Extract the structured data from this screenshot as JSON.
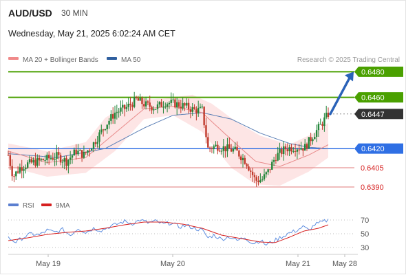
{
  "header": {
    "symbol": "AUD/USD",
    "timeframe": "30 MIN",
    "datetime": "Wednesday, May 21, 2025 6:02:24 AM CET"
  },
  "legend": {
    "ma20_label": "MA 20 + Bollinger Bands",
    "ma50_label": "MA 50",
    "credit": "Research © 2025 Trading Central"
  },
  "rsi_legend": {
    "rsi_label": "RSI",
    "ma_label": "9MA"
  },
  "colors": {
    "up": "#22863a",
    "down": "#c0392b",
    "resistance": "#4aa000",
    "pivot": "#2f6fe4",
    "support": "#e07a7a",
    "support_text": "#d62020",
    "last": "#333333",
    "arrow": "#2a62b8",
    "ma20": "#e88a8a",
    "ma50": "#5b7fb5",
    "band_fill": "#fbd0d0",
    "rsi": "#5f8fe0",
    "rsi_ma": "#d62020"
  },
  "chart_data": [
    {
      "type": "candlestick",
      "title": "AUD/USD 30 MIN",
      "x_ticks": [
        "May 19",
        "May 20",
        "May 21",
        "May 28"
      ],
      "ylim": [
        0.6383,
        0.6485
      ],
      "levels": [
        {
          "value": 0.648,
          "label": "0.6480",
          "kind": "resistance"
        },
        {
          "value": 0.646,
          "label": "0.6460",
          "kind": "resistance"
        },
        {
          "value": 0.6447,
          "label": "0.6447",
          "kind": "last"
        },
        {
          "value": 0.642,
          "label": "0.6420",
          "kind": "pivot"
        },
        {
          "value": 0.6405,
          "label": "0.6405",
          "kind": "support"
        },
        {
          "value": 0.639,
          "label": "0.6390",
          "kind": "support"
        }
      ],
      "close_path": [
        [
          0,
          0.6415
        ],
        [
          5,
          0.6398
        ],
        [
          12,
          0.6405
        ],
        [
          20,
          0.6408
        ],
        [
          30,
          0.641
        ],
        [
          40,
          0.6412
        ],
        [
          50,
          0.6414
        ],
        [
          60,
          0.641
        ],
        [
          70,
          0.6418
        ],
        [
          78,
          0.6415
        ],
        [
          88,
          0.6424
        ],
        [
          100,
          0.6438
        ],
        [
          110,
          0.6448
        ],
        [
          122,
          0.6452
        ],
        [
          132,
          0.6458
        ],
        [
          142,
          0.6454
        ],
        [
          152,
          0.6452
        ],
        [
          162,
          0.6456
        ],
        [
          172,
          0.6455
        ],
        [
          182,
          0.6453
        ],
        [
          192,
          0.645
        ],
        [
          200,
          0.645
        ],
        [
          206,
          0.642
        ],
        [
          215,
          0.6422
        ],
        [
          225,
          0.642
        ],
        [
          235,
          0.6418
        ],
        [
          245,
          0.641
        ],
        [
          255,
          0.6395
        ],
        [
          262,
          0.6396
        ],
        [
          268,
          0.6402
        ],
        [
          276,
          0.6414
        ],
        [
          286,
          0.642
        ],
        [
          296,
          0.6421
        ],
        [
          306,
          0.6421
        ],
        [
          314,
          0.643
        ],
        [
          322,
          0.6438
        ],
        [
          330,
          0.6447
        ]
      ],
      "ma20": [
        [
          0,
          0.6418
        ],
        [
          40,
          0.6409
        ],
        [
          80,
          0.6413
        ],
        [
          110,
          0.6432
        ],
        [
          140,
          0.6451
        ],
        [
          170,
          0.6453
        ],
        [
          200,
          0.6448
        ],
        [
          230,
          0.6427
        ],
        [
          255,
          0.641
        ],
        [
          280,
          0.6406
        ],
        [
          310,
          0.6415
        ],
        [
          330,
          0.6423
        ]
      ],
      "ma50": [
        [
          0,
          0.6416
        ],
        [
          50,
          0.6413
        ],
        [
          100,
          0.642
        ],
        [
          140,
          0.6436
        ],
        [
          170,
          0.6446
        ],
        [
          200,
          0.6448
        ],
        [
          230,
          0.6443
        ],
        [
          260,
          0.6432
        ],
        [
          290,
          0.6424
        ],
        [
          310,
          0.6421
        ],
        [
          330,
          0.642
        ]
      ],
      "bollinger_upper": [
        [
          0,
          0.6424
        ],
        [
          40,
          0.6418
        ],
        [
          80,
          0.6425
        ],
        [
          100,
          0.6444
        ],
        [
          130,
          0.6458
        ],
        [
          160,
          0.6459
        ],
        [
          190,
          0.6462
        ],
        [
          210,
          0.6455
        ],
        [
          235,
          0.6441
        ],
        [
          260,
          0.643
        ],
        [
          290,
          0.6423
        ],
        [
          315,
          0.6432
        ],
        [
          330,
          0.644
        ]
      ],
      "bollinger_lower": [
        [
          0,
          0.6406
        ],
        [
          40,
          0.6398
        ],
        [
          80,
          0.6401
        ],
        [
          110,
          0.6418
        ],
        [
          140,
          0.6443
        ],
        [
          170,
          0.6446
        ],
        [
          200,
          0.6433
        ],
        [
          230,
          0.6405
        ],
        [
          255,
          0.6392
        ],
        [
          280,
          0.6391
        ],
        [
          310,
          0.6402
        ],
        [
          330,
          0.6413
        ]
      ],
      "forecast_arrow": {
        "from": 0.6447,
        "to": 0.648
      }
    },
    {
      "type": "line",
      "title": "RSI",
      "y_ticks": [
        70,
        50,
        30
      ],
      "ylim": [
        25,
        75
      ],
      "series": [
        {
          "name": "RSI",
          "values": [
            [
              0,
              44
            ],
            [
              8,
              38
            ],
            [
              16,
              45
            ],
            [
              24,
              50
            ],
            [
              32,
              48
            ],
            [
              40,
              55
            ],
            [
              48,
              52
            ],
            [
              56,
              56
            ],
            [
              64,
              48
            ],
            [
              72,
              58
            ],
            [
              80,
              52
            ],
            [
              88,
              58
            ],
            [
              96,
              55
            ],
            [
              104,
              60
            ],
            [
              112,
              64
            ],
            [
              120,
              68
            ],
            [
              128,
              65
            ],
            [
              136,
              70
            ],
            [
              144,
              66
            ],
            [
              152,
              68
            ],
            [
              160,
              64
            ],
            [
              168,
              66
            ],
            [
              176,
              60
            ],
            [
              184,
              62
            ],
            [
              192,
              58
            ],
            [
              200,
              55
            ],
            [
              206,
              44
            ],
            [
              212,
              48
            ],
            [
              220,
              42
            ],
            [
              228,
              46
            ],
            [
              236,
              40
            ],
            [
              244,
              45
            ],
            [
              252,
              36
            ],
            [
              260,
              40
            ],
            [
              266,
              34
            ],
            [
              272,
              38
            ],
            [
              280,
              44
            ],
            [
              288,
              50
            ],
            [
              296,
              54
            ],
            [
              304,
              60
            ],
            [
              310,
              55
            ],
            [
              316,
              63
            ],
            [
              322,
              66
            ],
            [
              330,
              70
            ]
          ]
        },
        {
          "name": "9MA",
          "values": [
            [
              0,
              40
            ],
            [
              20,
              44
            ],
            [
              40,
              49
            ],
            [
              60,
              52
            ],
            [
              80,
              54
            ],
            [
              100,
              58
            ],
            [
              120,
              63
            ],
            [
              140,
              67
            ],
            [
              160,
              67
            ],
            [
              180,
              64
            ],
            [
              200,
              58
            ],
            [
              220,
              48
            ],
            [
              240,
              43
            ],
            [
              260,
              38
            ],
            [
              275,
              37
            ],
            [
              290,
              45
            ],
            [
              305,
              54
            ],
            [
              320,
              58
            ],
            [
              330,
              63
            ]
          ]
        }
      ]
    }
  ]
}
